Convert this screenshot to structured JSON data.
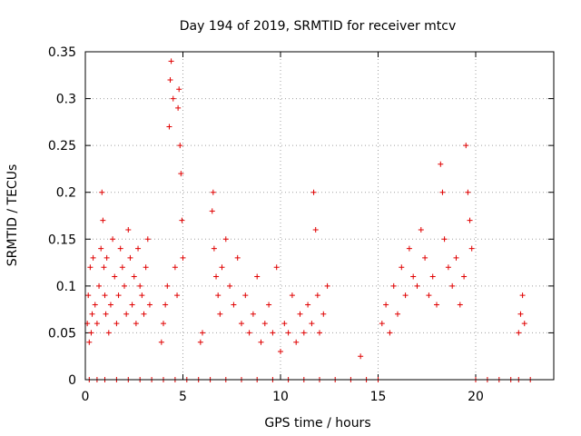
{
  "chart_data": {
    "type": "scatter",
    "title": "Day 194 of 2019, SRMTID for receiver mtcv",
    "xlabel": "GPS time / hours",
    "ylabel": "SRMTID / TECUs",
    "xlim": [
      0,
      24
    ],
    "ylim": [
      0,
      0.35
    ],
    "xticks": [
      0,
      5,
      10,
      15,
      20
    ],
    "xtick_labels": [
      "0",
      "5",
      "10",
      "15",
      "20"
    ],
    "yticks": [
      0,
      0.05,
      0.1,
      0.15,
      0.2,
      0.25,
      0.3,
      0.35
    ],
    "ytick_labels": [
      "0",
      "0.05",
      "0.1",
      "0.15",
      "0.2",
      "0.25",
      "0.3",
      "0.35"
    ],
    "grid": true,
    "marker": "+",
    "color": "#e00000",
    "series": [
      {
        "name": "SRMTID",
        "x": [
          0.1,
          0.15,
          0.2,
          0.25,
          0.3,
          0.35,
          0.4,
          0.5,
          0.6,
          0.7,
          0.8,
          0.85,
          0.9,
          0.95,
          1.0,
          1.05,
          1.1,
          1.2,
          1.3,
          1.4,
          1.5,
          1.6,
          1.7,
          1.8,
          1.9,
          2.0,
          2.1,
          2.2,
          2.3,
          2.4,
          2.5,
          2.6,
          2.7,
          2.8,
          2.9,
          3.0,
          3.1,
          3.2,
          3.3,
          3.9,
          4.0,
          4.1,
          4.2,
          4.3,
          4.35,
          4.4,
          4.5,
          4.6,
          4.7,
          4.75,
          4.8,
          4.85,
          4.9,
          4.95,
          5.0,
          5.9,
          6.0,
          6.5,
          6.55,
          6.6,
          6.7,
          6.8,
          6.9,
          7.0,
          7.2,
          7.4,
          7.6,
          7.8,
          8.0,
          8.2,
          8.4,
          8.6,
          8.8,
          9.0,
          9.2,
          9.4,
          9.6,
          9.8,
          10.0,
          10.2,
          10.4,
          10.6,
          10.8,
          11.0,
          11.2,
          11.4,
          11.6,
          11.7,
          11.8,
          11.9,
          12.0,
          12.2,
          12.4,
          14.1,
          15.2,
          15.4,
          15.6,
          15.8,
          16.0,
          16.2,
          16.4,
          16.6,
          16.8,
          17.0,
          17.2,
          17.4,
          17.6,
          17.8,
          18.0,
          18.2,
          18.3,
          18.4,
          18.6,
          18.8,
          19.0,
          19.2,
          19.4,
          19.5,
          19.6,
          19.7,
          19.8,
          22.2,
          22.3,
          22.4,
          22.5,
          0.2,
          0.6,
          1.0,
          1.6,
          2.2,
          2.8,
          3.4,
          4.0,
          4.6,
          5.2,
          5.8,
          6.4,
          7.2,
          8.0,
          8.8,
          9.6,
          10.4,
          11.2,
          12.0,
          12.8,
          13.6,
          14.4,
          15.0,
          20.0,
          20.6,
          21.2,
          21.8,
          22.2,
          22.8
        ],
        "y": [
          0.06,
          0.09,
          0.04,
          0.12,
          0.05,
          0.07,
          0.13,
          0.08,
          0.06,
          0.1,
          0.14,
          0.2,
          0.17,
          0.12,
          0.09,
          0.07,
          0.13,
          0.05,
          0.08,
          0.15,
          0.11,
          0.06,
          0.09,
          0.14,
          0.12,
          0.1,
          0.07,
          0.16,
          0.13,
          0.08,
          0.11,
          0.06,
          0.14,
          0.1,
          0.09,
          0.07,
          0.12,
          0.15,
          0.08,
          0.04,
          0.06,
          0.08,
          0.1,
          0.27,
          0.32,
          0.34,
          0.3,
          0.12,
          0.09,
          0.29,
          0.31,
          0.25,
          0.22,
          0.17,
          0.13,
          0.04,
          0.05,
          0.18,
          0.2,
          0.14,
          0.11,
          0.09,
          0.07,
          0.12,
          0.15,
          0.1,
          0.08,
          0.13,
          0.06,
          0.09,
          0.05,
          0.07,
          0.11,
          0.04,
          0.06,
          0.08,
          0.05,
          0.12,
          0.03,
          0.06,
          0.05,
          0.09,
          0.04,
          0.07,
          0.05,
          0.08,
          0.06,
          0.2,
          0.16,
          0.09,
          0.05,
          0.07,
          0.1,
          0.025,
          0.06,
          0.08,
          0.05,
          0.1,
          0.07,
          0.12,
          0.09,
          0.14,
          0.11,
          0.1,
          0.16,
          0.13,
          0.09,
          0.11,
          0.08,
          0.23,
          0.2,
          0.15,
          0.12,
          0.1,
          0.13,
          0.08,
          0.11,
          0.25,
          0.2,
          0.17,
          0.14,
          0.05,
          0.07,
          0.09,
          0.06,
          0,
          0,
          0,
          0,
          0,
          0,
          0,
          0,
          0,
          0,
          0,
          0,
          0,
          0,
          0,
          0,
          0,
          0,
          0,
          0,
          0,
          0,
          0,
          0,
          0,
          0,
          0,
          0,
          0
        ]
      }
    ]
  }
}
